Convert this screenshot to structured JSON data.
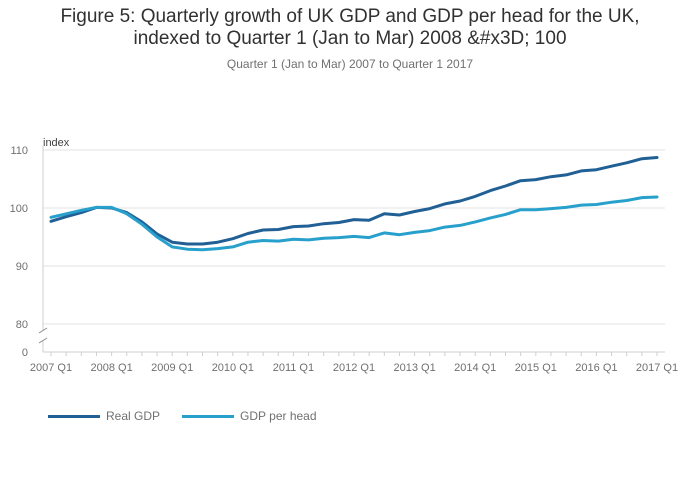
{
  "chart_data": {
    "type": "line",
    "title_line1": "Figure 5: Quarterly growth of UK GDP and GDP per head for the UK,",
    "title_line2": "indexed to Quarter 1 (Jan to Mar) 2008 &#x3D; 100",
    "subtitle": "Quarter 1 (Jan to Mar) 2007 to Quarter 1 2017",
    "ylabel": "index",
    "ylim": [
      80,
      110
    ],
    "axis_break_zero_label": "0",
    "yticks": [
      80,
      90,
      100,
      110
    ],
    "xticks": [
      "2007 Q1",
      "2008 Q1",
      "2009 Q1",
      "2010 Q1",
      "2011 Q1",
      "2012 Q1",
      "2013 Q1",
      "2014 Q1",
      "2015 Q1",
      "2016 Q1",
      "2017 Q1"
    ],
    "x": [
      "2007 Q1",
      "2007 Q2",
      "2007 Q3",
      "2007 Q4",
      "2008 Q1",
      "2008 Q2",
      "2008 Q3",
      "2008 Q4",
      "2009 Q1",
      "2009 Q2",
      "2009 Q3",
      "2009 Q4",
      "2010 Q1",
      "2010 Q2",
      "2010 Q3",
      "2010 Q4",
      "2011 Q1",
      "2011 Q2",
      "2011 Q3",
      "2011 Q4",
      "2012 Q1",
      "2012 Q2",
      "2012 Q3",
      "2012 Q4",
      "2013 Q1",
      "2013 Q2",
      "2013 Q3",
      "2013 Q4",
      "2014 Q1",
      "2014 Q2",
      "2014 Q3",
      "2014 Q4",
      "2015 Q1",
      "2015 Q2",
      "2015 Q3",
      "2015 Q4",
      "2016 Q1",
      "2016 Q2",
      "2016 Q3",
      "2016 Q4",
      "2017 Q1"
    ],
    "series": [
      {
        "name": "Real GDP",
        "color": "#206095",
        "values": [
          97.7,
          98.5,
          99.2,
          100.1,
          100.0,
          99.2,
          97.6,
          95.5,
          94.1,
          93.8,
          93.8,
          94.1,
          94.7,
          95.6,
          96.2,
          96.3,
          96.8,
          96.9,
          97.3,
          97.5,
          98.0,
          97.9,
          99.0,
          98.8,
          99.4,
          99.9,
          100.7,
          101.2,
          102.0,
          103.0,
          103.8,
          104.7,
          104.9,
          105.4,
          105.7,
          106.4,
          106.6,
          107.2,
          107.8,
          108.5,
          108.7
        ]
      },
      {
        "name": "GDP per head",
        "color": "#27a0cc",
        "values": [
          98.4,
          99.0,
          99.6,
          100.1,
          100.1,
          99.0,
          97.2,
          95.0,
          93.3,
          92.9,
          92.8,
          93.0,
          93.3,
          94.1,
          94.4,
          94.3,
          94.6,
          94.5,
          94.8,
          94.9,
          95.1,
          94.9,
          95.7,
          95.4,
          95.8,
          96.1,
          96.7,
          97.0,
          97.6,
          98.3,
          98.9,
          99.7,
          99.7,
          99.9,
          100.1,
          100.5,
          100.6,
          101.0,
          101.3,
          101.8,
          101.9
        ]
      }
    ]
  }
}
